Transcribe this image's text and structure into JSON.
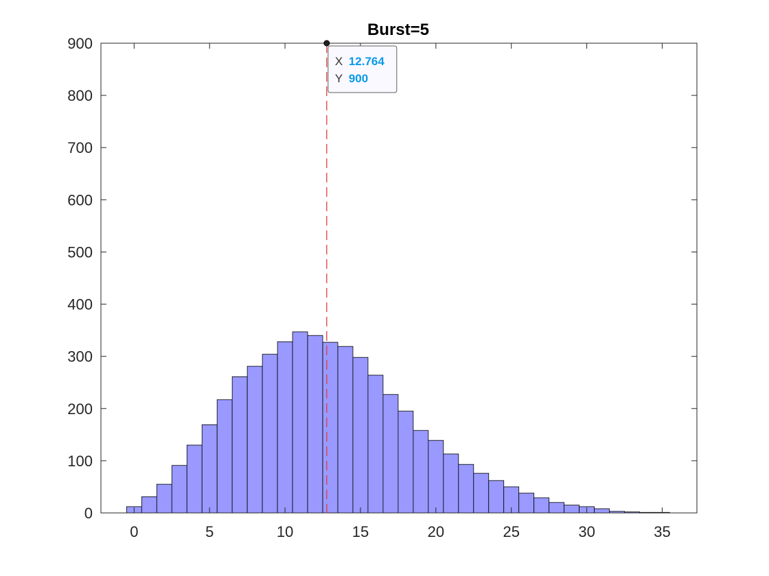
{
  "chart_data": {
    "type": "bar",
    "title": "Burst=5",
    "xlabel": "",
    "ylabel": "",
    "xlim": [
      -2.2,
      37.3
    ],
    "ylim": [
      0,
      900
    ],
    "xticks": [
      0,
      5,
      10,
      15,
      20,
      25,
      30,
      35
    ],
    "yticks": [
      0,
      100,
      200,
      300,
      400,
      500,
      600,
      700,
      800,
      900
    ],
    "grid": false,
    "legend": "none",
    "bin_width": 1,
    "bin_start": -0.5,
    "values": [
      12,
      31,
      55,
      91,
      130,
      169,
      217,
      261,
      281,
      304,
      328,
      347,
      340,
      327,
      319,
      298,
      264,
      227,
      195,
      158,
      139,
      113,
      93,
      76,
      62,
      50,
      38,
      29,
      20,
      15,
      12,
      8,
      3,
      2,
      1,
      1
    ],
    "bar_color": "#9999ff",
    "bar_edge_color": "#000000",
    "vline": {
      "x": 12.764,
      "color": "#e03c3c",
      "style": "dashed"
    },
    "datatip": {
      "x_label": "X",
      "x_value": "12.764",
      "y_label": "Y",
      "y_value": "900"
    }
  }
}
